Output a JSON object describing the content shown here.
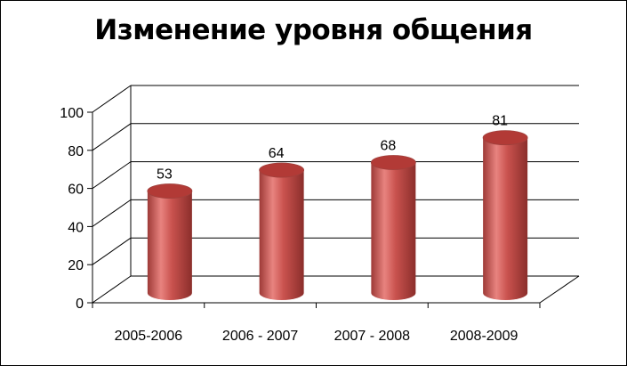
{
  "chart_data": {
    "type": "bar",
    "style": "3d-cylinder",
    "title": "Изменение уровня общения",
    "categories": [
      "2005-2006",
      "2006 - 2007",
      "2007 - 2008",
      "2008-2009"
    ],
    "values": [
      53,
      64,
      68,
      81
    ],
    "data_labels": [
      "53",
      "64",
      "68",
      "81"
    ],
    "ylim": [
      0,
      100
    ],
    "yticks": [
      0,
      20,
      40,
      60,
      80,
      100
    ],
    "ytick_labels": [
      "0",
      "20",
      "40",
      "60",
      "80",
      "100"
    ],
    "grid": true,
    "legend": "none",
    "colors": {
      "bar": "#C0504D",
      "bar_light": "#E8837F",
      "bar_dark": "#8B2E2B",
      "bar_top": "#B23A36",
      "grid": "#000000"
    }
  }
}
